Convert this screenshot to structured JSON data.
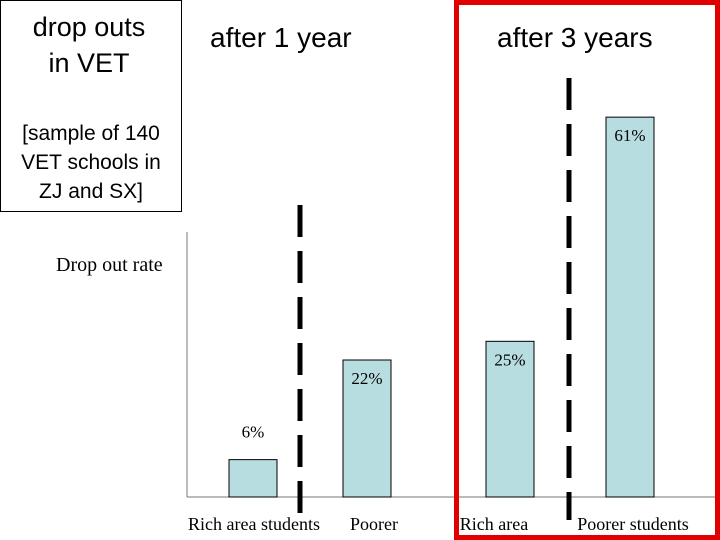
{
  "title": {
    "main_line1": "drop outs",
    "main_line2": "in VET",
    "sub_line1": "[sample of 140",
    "sub_line2": "VET schools in",
    "sub_line3": "ZJ and SX]"
  },
  "group_labels": [
    "after 1 year",
    "after 3 years"
  ],
  "colors": {
    "bar_fill": "#b8dde1",
    "bar_stroke": "#000000",
    "divider": "#000000",
    "highlight_box": "#e00000"
  },
  "chart_data": {
    "type": "bar",
    "ylabel": "Drop out rate",
    "xlabel": "",
    "categories": [
      "Rich area students",
      "Poorer",
      "Rich area",
      "Poorer students"
    ],
    "values": [
      6,
      22,
      25,
      61
    ],
    "value_labels": [
      "6%",
      "22%",
      "25%",
      "61%"
    ],
    "groups": [
      {
        "label": "after 1 year",
        "categories": [
          "Rich area students",
          "Poorer"
        ]
      },
      {
        "label": "after 3 years",
        "categories": [
          "Rich area",
          "Poorer students"
        ]
      }
    ],
    "ylim": [
      0,
      66
    ],
    "grid": false,
    "legend": "none"
  }
}
